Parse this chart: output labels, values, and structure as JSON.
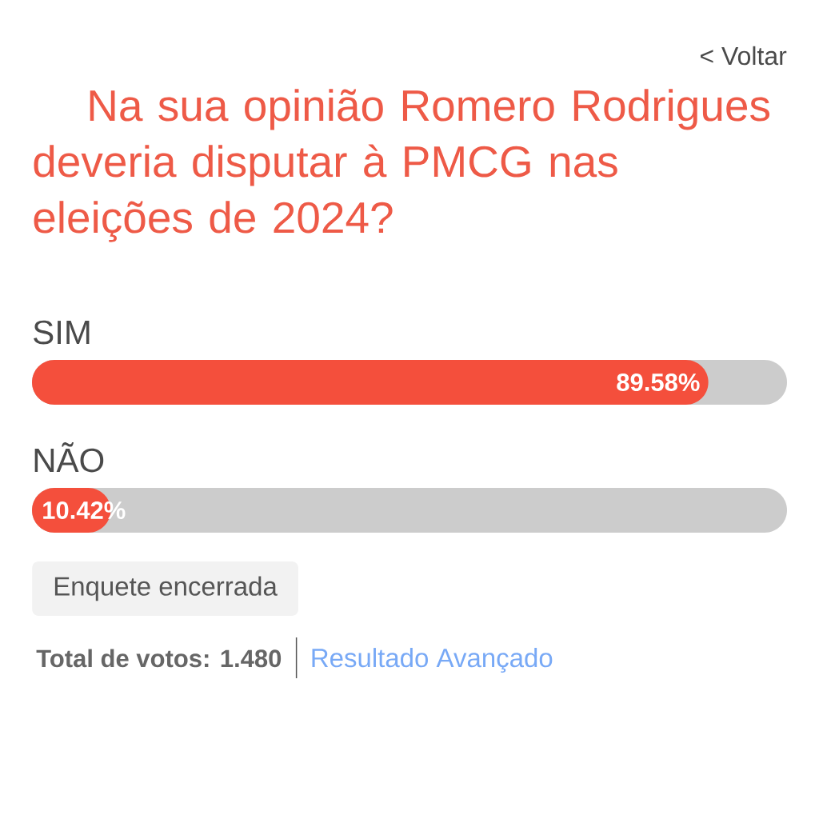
{
  "chart_data": {
    "type": "bar",
    "orientation": "horizontal",
    "title": "Na sua opinião Romero Rodrigues deveria disputar à PMCG nas eleições de 2024?",
    "categories": [
      "SIM",
      "NÃO"
    ],
    "values": [
      89.58,
      10.42
    ],
    "color": "#f44f3c",
    "xlim": [
      0,
      100
    ],
    "value_labels": [
      "89.58%",
      "10.42%"
    ],
    "tick_labels": "y",
    "annotations": [
      "< Voltar",
      "Enquete encerrada",
      "Total de votos: 1.480",
      "Resultado Avançado"
    ]
  }
}
